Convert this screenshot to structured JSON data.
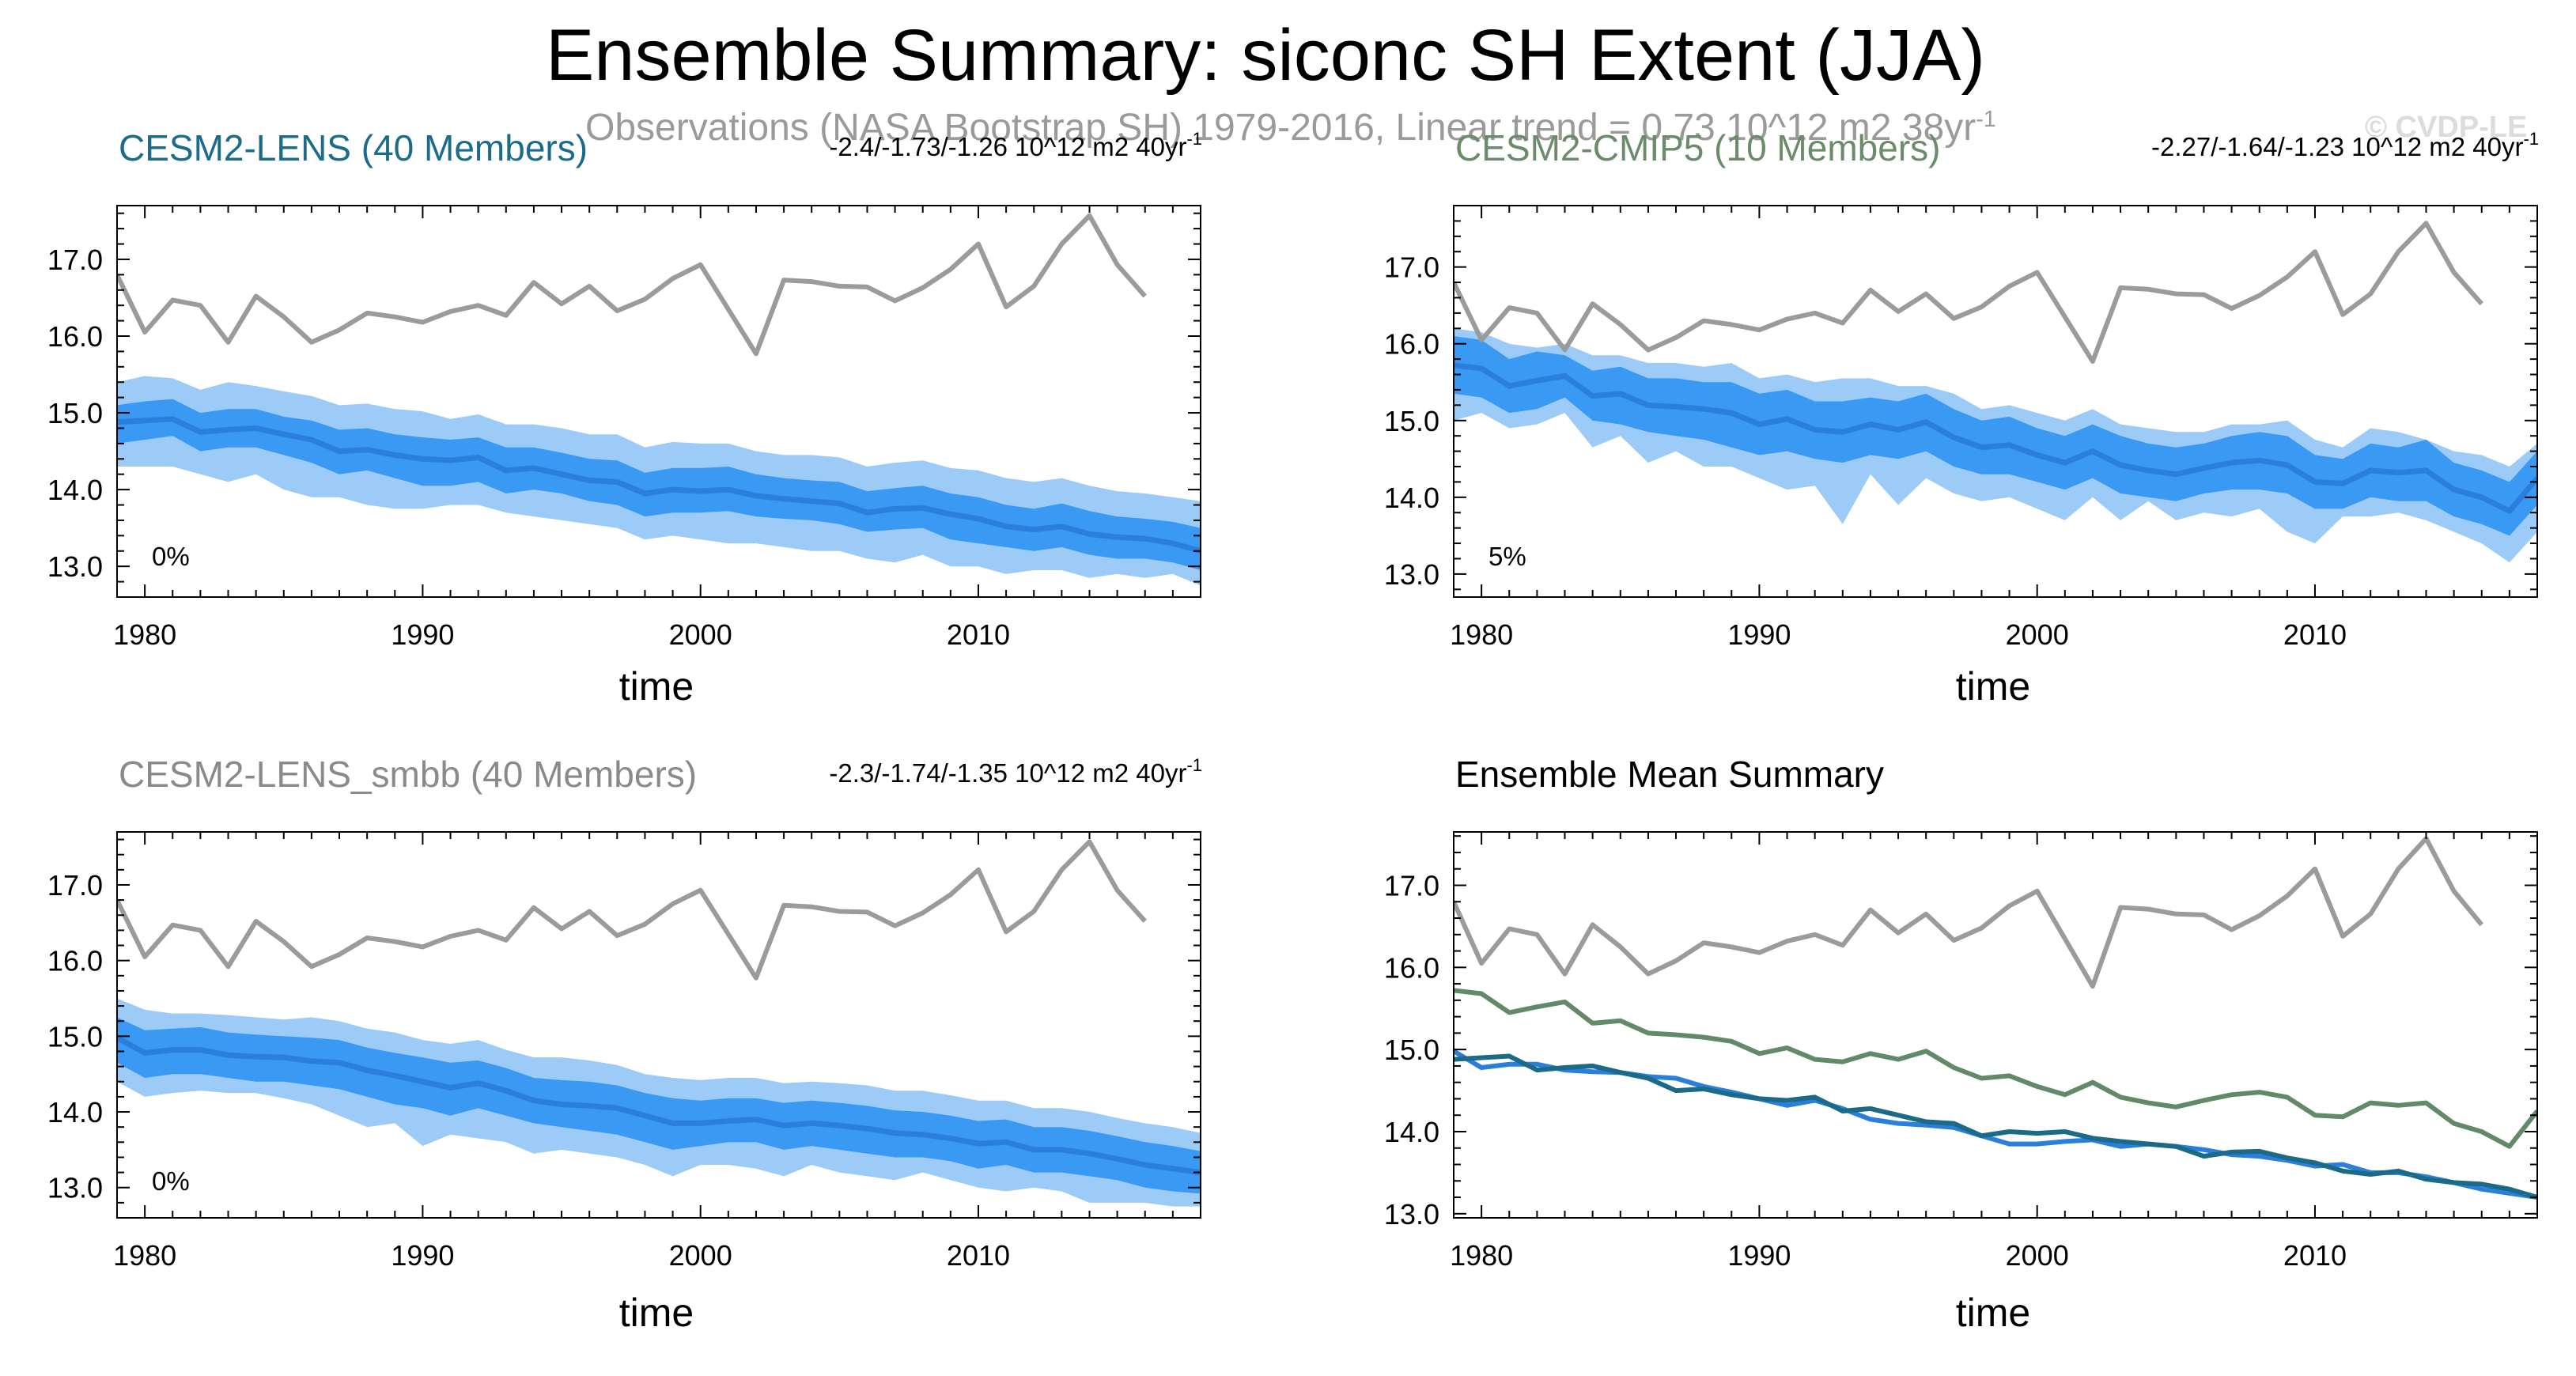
{
  "title": "Ensemble Summary: siconc SH Extent (JJA)",
  "subtitle": {
    "text": "Observations (NASA Bootstrap SH) 1979-2016, Linear trend = 0.73 10^12 m2 38yr",
    "sup": "-1"
  },
  "watermark": "© CVDP-LE",
  "colors": {
    "obs": "#9b9b9b",
    "lens_mean": "#2a7fdc",
    "band_outer": "#9ccbf7",
    "band_inner": "#3a99f2",
    "lens_title": "#1a6b8c",
    "cmip5_title": "#6a8c6a",
    "smbb_title": "#8a8a8a",
    "lens_line": "#1b6a88",
    "cmip5_line": "#628a68",
    "smbb_line": "#2a7fdc"
  },
  "chart_data": [
    {
      "type": "area",
      "title": "CESM2-LENS (40 Members)",
      "trend_label": "-2.4/-1.73/-1.26 10^12 m2 40yr",
      "trend_sup": "-1",
      "percent_label": "0%",
      "xlabel": "time",
      "ylabel": "",
      "xlim": [
        1979,
        2018
      ],
      "ylim": [
        12.6,
        17.7
      ],
      "x_ticks": [
        1980,
        1990,
        2000,
        2010
      ],
      "y_ticks": [
        "13.0",
        "14.0",
        "15.0",
        "16.0",
        "17.0"
      ],
      "observations": {
        "x_start": 1979,
        "values": [
          16.8,
          16.05,
          16.47,
          16.4,
          15.92,
          16.52,
          16.25,
          15.92,
          16.08,
          16.3,
          16.25,
          16.18,
          16.32,
          16.4,
          16.27,
          16.7,
          16.42,
          16.65,
          16.33,
          16.48,
          16.75,
          16.93,
          16.35,
          15.77,
          16.73,
          16.71,
          16.65,
          16.64,
          16.46,
          16.63,
          16.87,
          17.2,
          16.38,
          16.65,
          17.2,
          17.57,
          16.93,
          16.52
        ]
      },
      "ensemble": {
        "x_start": 1979,
        "mean": [
          14.88,
          14.9,
          14.92,
          14.75,
          14.78,
          14.8,
          14.72,
          14.65,
          14.5,
          14.52,
          14.45,
          14.4,
          14.38,
          14.42,
          14.25,
          14.28,
          14.2,
          14.12,
          14.1,
          13.95,
          14.0,
          13.98,
          14.0,
          13.92,
          13.88,
          13.85,
          13.82,
          13.7,
          13.75,
          13.76,
          13.68,
          13.62,
          13.52,
          13.48,
          13.52,
          13.42,
          13.38,
          13.36,
          13.3,
          13.2
        ],
        "p10": [
          14.6,
          14.65,
          14.7,
          14.5,
          14.55,
          14.55,
          14.45,
          14.35,
          14.2,
          14.25,
          14.15,
          14.05,
          14.05,
          14.1,
          13.95,
          14.0,
          13.95,
          13.85,
          13.8,
          13.65,
          13.7,
          13.7,
          13.72,
          13.65,
          13.62,
          13.6,
          13.55,
          13.45,
          13.48,
          13.5,
          13.35,
          13.3,
          13.25,
          13.2,
          13.25,
          13.15,
          13.1,
          13.1,
          13.05,
          12.95
        ],
        "p90": [
          15.1,
          15.15,
          15.18,
          15.0,
          15.05,
          15.05,
          14.95,
          14.9,
          14.78,
          14.8,
          14.72,
          14.68,
          14.65,
          14.68,
          14.55,
          14.55,
          14.48,
          14.4,
          14.38,
          14.22,
          14.28,
          14.28,
          14.3,
          14.2,
          14.15,
          14.12,
          14.1,
          13.98,
          14.02,
          14.05,
          13.95,
          13.9,
          13.8,
          13.75,
          13.82,
          13.72,
          13.65,
          13.62,
          13.58,
          13.5
        ],
        "min": [
          14.3,
          14.3,
          14.3,
          14.2,
          14.1,
          14.2,
          14.0,
          13.9,
          13.9,
          13.8,
          13.75,
          13.75,
          13.8,
          13.8,
          13.7,
          13.65,
          13.6,
          13.55,
          13.5,
          13.35,
          13.4,
          13.35,
          13.3,
          13.3,
          13.25,
          13.2,
          13.2,
          13.1,
          13.05,
          13.15,
          13.0,
          13.0,
          12.9,
          12.95,
          12.95,
          12.85,
          12.9,
          12.85,
          12.9,
          12.75
        ],
        "max": [
          15.4,
          15.48,
          15.45,
          15.3,
          15.4,
          15.35,
          15.28,
          15.22,
          15.1,
          15.12,
          15.05,
          15.02,
          14.92,
          14.98,
          14.85,
          14.85,
          14.8,
          14.72,
          14.72,
          14.55,
          14.62,
          14.6,
          14.6,
          14.5,
          14.45,
          14.45,
          14.42,
          14.3,
          14.35,
          14.38,
          14.28,
          14.25,
          14.15,
          14.1,
          14.15,
          14.05,
          13.98,
          13.95,
          13.9,
          13.85
        ]
      }
    },
    {
      "type": "area",
      "title": "CESM2-CMIP5 (10 Members)",
      "trend_label": "-2.27/-1.64/-1.23 10^12 m2 40yr",
      "trend_sup": "-1",
      "percent_label": "5%",
      "xlabel": "time",
      "ylabel": "",
      "xlim": [
        1979,
        2018
      ],
      "ylim": [
        12.7,
        17.8
      ],
      "x_ticks": [
        1980,
        1990,
        2000,
        2010
      ],
      "y_ticks": [
        "13.0",
        "14.0",
        "15.0",
        "16.0",
        "17.0"
      ],
      "observations": {
        "x_start": 1979,
        "values": [
          16.8,
          16.05,
          16.47,
          16.4,
          15.92,
          16.52,
          16.25,
          15.92,
          16.08,
          16.3,
          16.25,
          16.18,
          16.32,
          16.4,
          16.27,
          16.7,
          16.42,
          16.65,
          16.33,
          16.48,
          16.75,
          16.93,
          16.35,
          15.77,
          16.73,
          16.71,
          16.65,
          16.64,
          16.46,
          16.63,
          16.87,
          17.2,
          16.38,
          16.65,
          17.2,
          17.57,
          16.93,
          16.52
        ]
      },
      "ensemble": {
        "x_start": 1979,
        "mean": [
          15.72,
          15.68,
          15.45,
          15.52,
          15.58,
          15.32,
          15.35,
          15.2,
          15.18,
          15.15,
          15.1,
          14.95,
          15.02,
          14.88,
          14.85,
          14.95,
          14.88,
          14.98,
          14.78,
          14.65,
          14.68,
          14.55,
          14.45,
          14.6,
          14.42,
          14.35,
          14.3,
          14.38,
          14.45,
          14.48,
          14.42,
          14.2,
          14.18,
          14.35,
          14.32,
          14.35,
          14.1,
          14.0,
          13.82,
          14.25
        ],
        "p10": [
          15.35,
          15.3,
          15.1,
          15.15,
          15.3,
          15.0,
          14.95,
          14.85,
          14.8,
          14.75,
          14.65,
          14.55,
          14.6,
          14.5,
          14.45,
          14.55,
          14.5,
          14.6,
          14.4,
          14.3,
          14.3,
          14.2,
          14.1,
          14.25,
          14.05,
          14.0,
          13.95,
          14.05,
          14.1,
          14.1,
          14.05,
          13.85,
          13.85,
          14.0,
          13.95,
          13.95,
          13.75,
          13.65,
          13.5,
          13.9
        ],
        "p90": [
          16.1,
          16.05,
          15.8,
          15.9,
          15.85,
          15.65,
          15.7,
          15.55,
          15.55,
          15.5,
          15.5,
          15.35,
          15.4,
          15.25,
          15.25,
          15.3,
          15.25,
          15.35,
          15.15,
          15.0,
          15.05,
          14.9,
          14.8,
          14.95,
          14.8,
          14.7,
          14.65,
          14.7,
          14.8,
          14.85,
          14.8,
          14.55,
          14.5,
          14.7,
          14.65,
          14.75,
          14.45,
          14.35,
          14.2,
          14.6
        ],
        "min": [
          15.0,
          15.1,
          14.9,
          14.95,
          15.1,
          14.65,
          14.8,
          14.45,
          14.6,
          14.4,
          14.4,
          14.25,
          14.1,
          14.15,
          13.65,
          14.3,
          13.9,
          14.25,
          14.05,
          13.95,
          14.0,
          13.85,
          13.7,
          14.0,
          13.7,
          13.95,
          13.7,
          13.8,
          13.75,
          13.85,
          13.55,
          13.4,
          13.75,
          13.75,
          13.8,
          13.7,
          13.55,
          13.4,
          13.15,
          13.55
        ],
        "max": [
          16.2,
          16.15,
          16.0,
          15.95,
          16.0,
          15.85,
          15.85,
          15.75,
          15.75,
          15.7,
          15.75,
          15.55,
          15.6,
          15.5,
          15.55,
          15.55,
          15.45,
          15.45,
          15.35,
          15.15,
          15.2,
          15.1,
          15.0,
          15.15,
          14.95,
          14.9,
          14.85,
          14.85,
          14.95,
          14.95,
          15.0,
          14.75,
          14.65,
          14.9,
          14.85,
          14.75,
          14.6,
          14.55,
          14.4,
          14.7
        ]
      }
    },
    {
      "type": "area",
      "title": "CESM2-LENS_smbb (40 Members)",
      "trend_label": "-2.3/-1.74/-1.35 10^12 m2 40yr",
      "trend_sup": "-1",
      "percent_label": "0%",
      "xlabel": "time",
      "ylabel": "",
      "xlim": [
        1979,
        2018
      ],
      "ylim": [
        12.6,
        17.7
      ],
      "x_ticks": [
        1980,
        1990,
        2000,
        2010
      ],
      "y_ticks": [
        "13.0",
        "14.0",
        "15.0",
        "16.0",
        "17.0"
      ],
      "observations": {
        "x_start": 1979,
        "values": [
          16.8,
          16.05,
          16.47,
          16.4,
          15.92,
          16.52,
          16.25,
          15.92,
          16.08,
          16.3,
          16.25,
          16.18,
          16.32,
          16.4,
          16.27,
          16.7,
          16.42,
          16.65,
          16.33,
          16.48,
          16.75,
          16.93,
          16.35,
          15.77,
          16.73,
          16.71,
          16.65,
          16.64,
          16.46,
          16.63,
          16.87,
          17.2,
          16.38,
          16.65,
          17.2,
          17.57,
          16.93,
          16.52
        ]
      },
      "ensemble": {
        "x_start": 1979,
        "mean": [
          14.98,
          14.78,
          14.82,
          14.82,
          14.75,
          14.73,
          14.72,
          14.67,
          14.65,
          14.55,
          14.48,
          14.4,
          14.32,
          14.38,
          14.28,
          14.15,
          14.1,
          14.08,
          14.05,
          13.95,
          13.85,
          13.85,
          13.88,
          13.9,
          13.82,
          13.85,
          13.82,
          13.78,
          13.72,
          13.7,
          13.65,
          13.58,
          13.6,
          13.5,
          13.5,
          13.45,
          13.38,
          13.3,
          13.25,
          13.2
        ],
        "p10": [
          14.65,
          14.45,
          14.5,
          14.5,
          14.45,
          14.4,
          14.4,
          14.35,
          14.3,
          14.2,
          14.1,
          14.05,
          13.95,
          14.05,
          13.95,
          13.85,
          13.8,
          13.75,
          13.7,
          13.6,
          13.5,
          13.55,
          13.6,
          13.6,
          13.5,
          13.55,
          13.5,
          13.45,
          13.4,
          13.4,
          13.35,
          13.25,
          13.3,
          13.2,
          13.2,
          13.15,
          13.1,
          13.0,
          12.95,
          12.92
        ],
        "p90": [
          15.25,
          15.08,
          15.1,
          15.12,
          15.05,
          15.02,
          15.0,
          14.98,
          14.95,
          14.85,
          14.78,
          14.72,
          14.65,
          14.68,
          14.58,
          14.45,
          14.42,
          14.4,
          14.35,
          14.25,
          14.18,
          14.15,
          14.18,
          14.18,
          14.12,
          14.15,
          14.12,
          14.08,
          14.02,
          14.0,
          13.95,
          13.88,
          13.9,
          13.8,
          13.8,
          13.75,
          13.68,
          13.6,
          13.55,
          13.48
        ],
        "min": [
          14.4,
          14.2,
          14.25,
          14.28,
          14.25,
          14.25,
          14.18,
          14.1,
          13.95,
          13.8,
          13.85,
          13.55,
          13.7,
          13.65,
          13.6,
          13.45,
          13.5,
          13.45,
          13.4,
          13.3,
          13.15,
          13.3,
          13.3,
          13.25,
          13.15,
          13.3,
          13.2,
          13.15,
          13.1,
          13.2,
          13.1,
          13.0,
          12.95,
          13.0,
          12.95,
          12.8,
          12.8,
          12.8,
          12.75,
          12.75
        ],
        "max": [
          15.5,
          15.35,
          15.3,
          15.3,
          15.28,
          15.25,
          15.22,
          15.25,
          15.2,
          15.1,
          15.05,
          14.95,
          14.9,
          14.95,
          14.82,
          14.72,
          14.72,
          14.68,
          14.62,
          14.5,
          14.45,
          14.42,
          14.45,
          14.45,
          14.38,
          14.4,
          14.38,
          14.35,
          14.28,
          14.28,
          14.22,
          14.15,
          14.15,
          14.05,
          14.05,
          14.0,
          13.92,
          13.85,
          13.8,
          13.72
        ]
      }
    },
    {
      "type": "line",
      "title": "Ensemble Mean Summary",
      "xlabel": "time",
      "ylabel": "",
      "xlim": [
        1979,
        2018
      ],
      "ylim": [
        12.95,
        17.65
      ],
      "x_ticks": [
        1980,
        1990,
        2000,
        2010
      ],
      "y_ticks": [
        "13.0",
        "14.0",
        "15.0",
        "16.0",
        "17.0"
      ],
      "x_start": 1979,
      "series": [
        {
          "name": "Observations (NASA Bootstrap SH)",
          "color": "#9b9b9b",
          "values": [
            16.8,
            16.05,
            16.47,
            16.4,
            15.92,
            16.52,
            16.25,
            15.92,
            16.08,
            16.3,
            16.25,
            16.18,
            16.32,
            16.4,
            16.27,
            16.7,
            16.42,
            16.65,
            16.33,
            16.48,
            16.75,
            16.93,
            16.35,
            15.77,
            16.73,
            16.71,
            16.65,
            16.64,
            16.46,
            16.63,
            16.87,
            17.2,
            16.38,
            16.65,
            17.2,
            17.57,
            16.93,
            16.52
          ]
        },
        {
          "name": "CESM2-CMIP5 (10 Members)",
          "color": "#628a68",
          "values": [
            15.72,
            15.68,
            15.45,
            15.52,
            15.58,
            15.32,
            15.35,
            15.2,
            15.18,
            15.15,
            15.1,
            14.95,
            15.02,
            14.88,
            14.85,
            14.95,
            14.88,
            14.98,
            14.78,
            14.65,
            14.68,
            14.55,
            14.45,
            14.6,
            14.42,
            14.35,
            14.3,
            14.38,
            14.45,
            14.48,
            14.42,
            14.2,
            14.18,
            14.35,
            14.32,
            14.35,
            14.1,
            14.0,
            13.82,
            14.25
          ]
        },
        {
          "name": "CESM2-LENS_smbb (40 Members)",
          "color": "#2a7fdc",
          "values": [
            14.98,
            14.78,
            14.82,
            14.82,
            14.75,
            14.73,
            14.72,
            14.67,
            14.65,
            14.55,
            14.48,
            14.4,
            14.32,
            14.38,
            14.28,
            14.15,
            14.1,
            14.08,
            14.05,
            13.95,
            13.85,
            13.85,
            13.88,
            13.9,
            13.82,
            13.85,
            13.82,
            13.78,
            13.72,
            13.7,
            13.65,
            13.58,
            13.6,
            13.5,
            13.5,
            13.45,
            13.38,
            13.3,
            13.25,
            13.2
          ]
        },
        {
          "name": "CESM2-LENS (40 Members)",
          "color": "#1b6a88",
          "values": [
            14.88,
            14.9,
            14.92,
            14.75,
            14.78,
            14.8,
            14.72,
            14.65,
            14.5,
            14.52,
            14.45,
            14.4,
            14.38,
            14.42,
            14.25,
            14.28,
            14.2,
            14.12,
            14.1,
            13.95,
            14.0,
            13.98,
            14.0,
            13.92,
            13.88,
            13.85,
            13.82,
            13.7,
            13.75,
            13.76,
            13.68,
            13.62,
            13.52,
            13.48,
            13.52,
            13.42,
            13.38,
            13.36,
            13.3,
            13.2
          ]
        }
      ]
    }
  ]
}
